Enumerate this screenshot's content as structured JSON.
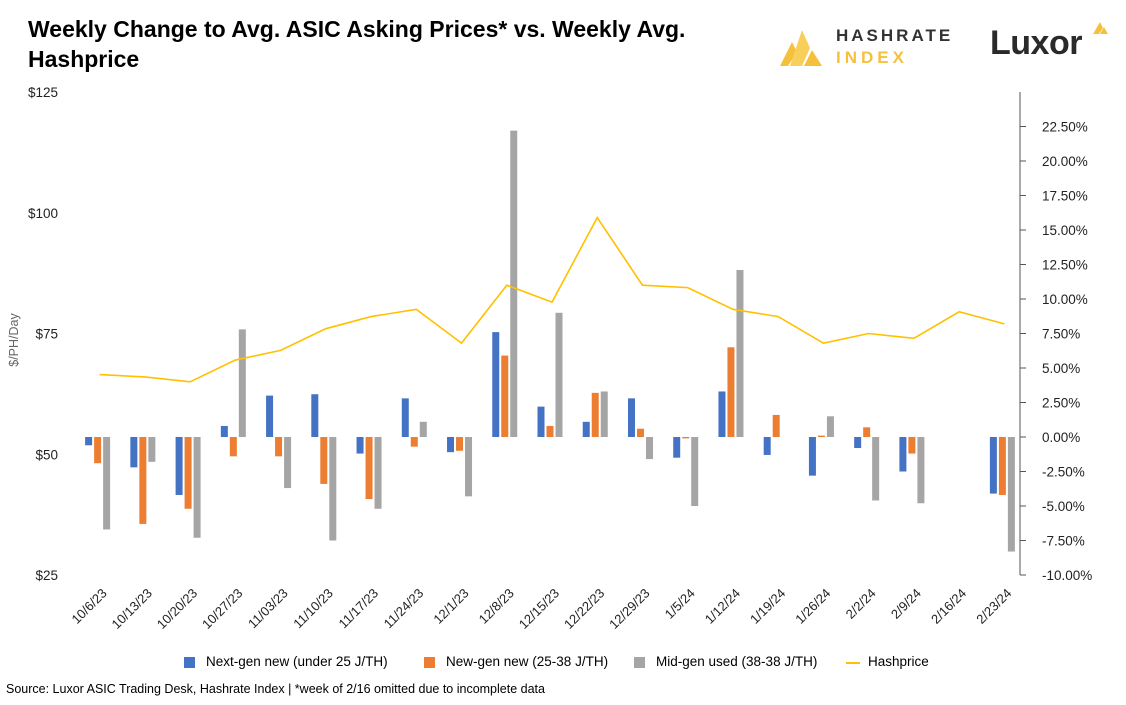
{
  "title": "Weekly Change to Avg. ASIC Asking Prices* vs. Weekly Avg. Hashprice",
  "logos": {
    "hashrate_line1": "HASHRATE",
    "hashrate_line2": "INDEX",
    "luxor": "Luxor"
  },
  "source": "Source: Luxor ASIC Trading Desk, Hashrate Index | *week of 2/16 omitted due to incomplete data",
  "colors": {
    "next_gen": "#4472c4",
    "new_gen": "#ed7d31",
    "mid_gen": "#a5a5a5",
    "hashprice": "#ffc000"
  },
  "chart_data": {
    "type": "bar",
    "categories": [
      "10/6/23",
      "10/13/23",
      "10/20/23",
      "10/27/23",
      "11/03/23",
      "11/10/23",
      "11/17/23",
      "11/24/23",
      "12/1/23",
      "12/8/23",
      "12/15/23",
      "12/22/23",
      "12/29/23",
      "1/5/24",
      "1/12/24",
      "1/19/24",
      "1/26/24",
      "2/2/24",
      "2/9/24",
      "2/16/24",
      "2/23/24"
    ],
    "ylabel": "$/PH/Day",
    "y_left": {
      "ylim": [
        25,
        125
      ],
      "ticks": [
        "$25",
        "$50",
        "$75",
        "$100",
        "$125"
      ],
      "tick_values": [
        25,
        50,
        75,
        100,
        125
      ]
    },
    "y_right": {
      "ylim": [
        -10,
        25
      ],
      "ticks": [
        "-10.00%",
        "-7.50%",
        "-5.00%",
        "-2.50%",
        "0.00%",
        "2.50%",
        "5.00%",
        "7.50%",
        "10.00%",
        "12.50%",
        "15.00%",
        "17.50%",
        "20.00%",
        "22.50%"
      ],
      "tick_values": [
        -10,
        -7.5,
        -5,
        -2.5,
        0,
        2.5,
        5,
        7.5,
        10,
        12.5,
        15,
        17.5,
        20,
        22.5
      ]
    },
    "series": [
      {
        "name": "Next-gen new (under 25 J/TH)",
        "axis": "right",
        "type": "bar",
        "values": [
          -0.6,
          -2.2,
          -4.2,
          0.8,
          3.0,
          3.1,
          -1.2,
          2.8,
          -1.1,
          7.6,
          2.2,
          1.1,
          2.8,
          -1.5,
          3.3,
          -1.3,
          -2.8,
          -0.8,
          -2.5,
          null,
          -4.1
        ]
      },
      {
        "name": "New-gen new (25-38 J/TH)",
        "axis": "right",
        "type": "bar",
        "values": [
          -1.9,
          -6.3,
          -5.2,
          -1.4,
          -1.4,
          -3.4,
          -4.5,
          -0.7,
          -1.0,
          5.9,
          0.8,
          3.2,
          0.6,
          -0.1,
          6.5,
          1.6,
          0.1,
          0.7,
          -1.2,
          null,
          -4.2
        ]
      },
      {
        "name": "Mid-gen used (38-38 J/TH)",
        "axis": "right",
        "type": "bar",
        "values": [
          -6.7,
          -1.8,
          -7.3,
          7.8,
          -3.7,
          -7.5,
          -5.2,
          1.1,
          -4.3,
          22.2,
          9.0,
          3.3,
          -1.6,
          -5.0,
          12.1,
          null,
          1.5,
          -4.6,
          -4.8,
          null,
          -8.3
        ]
      },
      {
        "name": "Hashprice",
        "axis": "left",
        "type": "line",
        "values": [
          66.5,
          66.0,
          65.0,
          69.5,
          71.5,
          76.0,
          78.5,
          80.0,
          73.0,
          85.0,
          81.5,
          99.0,
          85.0,
          84.5,
          80.0,
          78.5,
          73.0,
          75.0,
          74.0,
          79.5,
          77.0
        ]
      }
    ]
  }
}
